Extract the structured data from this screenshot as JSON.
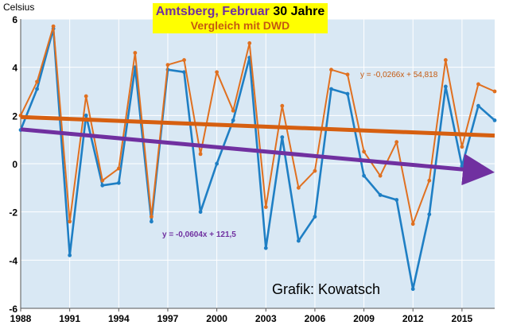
{
  "title": {
    "line1_prefix": "Amtsberg, Februar ",
    "line1_emphasis": "30 Jahre",
    "line2": "Vergleich mit DWD"
  },
  "y_unit": "Celsius",
  "credit": "Grafik: Kowatsch",
  "trend_labels": {
    "dwd": "y = -0,0266x + 54,818",
    "amtsberg": "y = -0,0604x + 121,5"
  },
  "colors": {
    "amtsberg": "#1f7fc4",
    "dwd": "#e07020",
    "trend_dwd": "#d65f10",
    "trend_amtsberg": "#7030a0",
    "plot_bg": "#d9e8f4",
    "grid": "#ffffff",
    "title_bg": "#ffff00"
  },
  "chart_data": {
    "type": "line",
    "xlim": [
      1988,
      2017
    ],
    "ylim": [
      -6,
      6
    ],
    "y_ticks": [
      "-6",
      "-4",
      "-2",
      "0",
      "2",
      "4",
      "6"
    ],
    "x_ticks": [
      "1988",
      "1991",
      "1994",
      "1997",
      "2000",
      "2003",
      "2006",
      "2009",
      "2012",
      "2015"
    ],
    "grid": true,
    "x": [
      1988,
      1989,
      1990,
      1991,
      1992,
      1993,
      1994,
      1995,
      1996,
      1997,
      1998,
      1999,
      2000,
      2001,
      2002,
      2003,
      2004,
      2005,
      2006,
      2007,
      2008,
      2009,
      2010,
      2011,
      2012,
      2013,
      2014,
      2015,
      2016,
      2017
    ],
    "series": [
      {
        "key": "amtsberg",
        "values": [
          1.4,
          3.1,
          5.6,
          -3.8,
          2.0,
          -0.9,
          -0.8,
          4.0,
          -2.4,
          3.9,
          3.8,
          -2.0,
          0.0,
          1.8,
          4.4,
          -3.5,
          1.1,
          -3.2,
          -2.2,
          3.1,
          2.9,
          -0.5,
          -1.3,
          -1.5,
          -5.2,
          -2.1,
          3.2,
          -0.1,
          2.4,
          1.8
        ]
      },
      {
        "key": "dwd",
        "values": [
          2.0,
          3.4,
          5.7,
          -2.4,
          2.8,
          -0.7,
          -0.2,
          4.6,
          -2.2,
          4.1,
          4.3,
          0.4,
          3.8,
          2.2,
          5.0,
          -1.8,
          2.4,
          -1.0,
          -0.3,
          3.9,
          3.7,
          0.5,
          -0.5,
          0.9,
          -2.5,
          -0.7,
          4.3,
          0.7,
          3.3,
          3.0
        ]
      }
    ],
    "trendlines": [
      {
        "key": "dwd",
        "slope": -0.0266,
        "intercept": 54.818,
        "arrow": false
      },
      {
        "key": "amtsberg",
        "slope": -0.0604,
        "intercept": 121.5,
        "arrow": true
      }
    ]
  }
}
